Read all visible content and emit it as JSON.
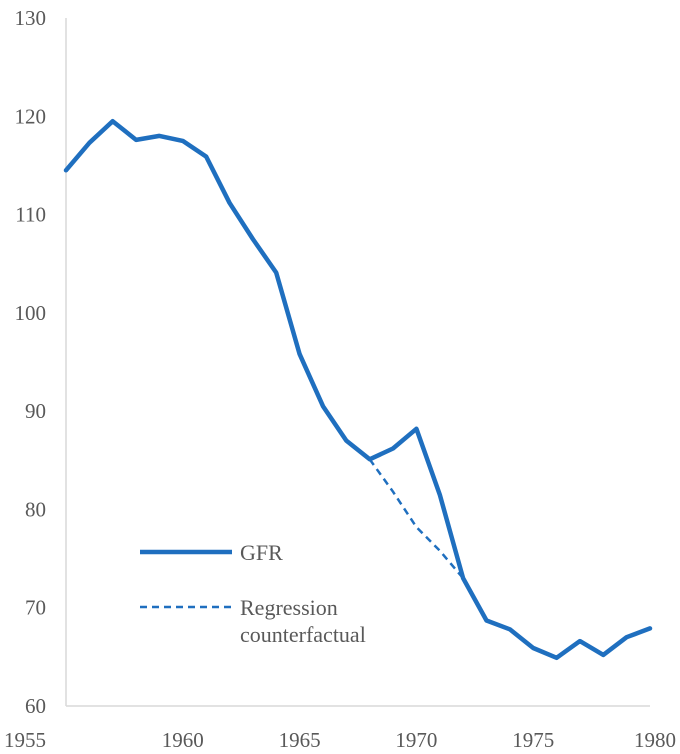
{
  "chart_data": {
    "type": "line",
    "title": "",
    "xlabel": "",
    "ylabel": "",
    "xlim": [
      1955,
      1980
    ],
    "ylim": [
      60,
      130
    ],
    "x_ticks": [
      1955,
      1960,
      1965,
      1970,
      1975,
      1980
    ],
    "y_ticks": [
      60,
      70,
      80,
      90,
      100,
      110,
      120,
      130
    ],
    "grid": false,
    "legend_position": "bottom-left",
    "series": [
      {
        "name": "GFR",
        "style": "solid",
        "color": "#1f6fbf",
        "x": [
          1955,
          1956,
          1957,
          1958,
          1959,
          1960,
          1961,
          1962,
          1963,
          1964,
          1965,
          1966,
          1967,
          1968,
          1969,
          1970,
          1971,
          1972,
          1973,
          1974,
          1975,
          1976,
          1977,
          1978,
          1979,
          1980
        ],
        "values": [
          114.5,
          117.3,
          119.5,
          117.6,
          118.0,
          117.5,
          115.9,
          111.2,
          107.5,
          104.1,
          95.8,
          90.5,
          87.0,
          85.1,
          86.2,
          88.2,
          81.5,
          73.0,
          68.7,
          67.8,
          65.9,
          64.9,
          66.6,
          65.2,
          67.0,
          67.9
        ]
      },
      {
        "name": "Regression counterfactual",
        "legend_lines": [
          "Regression",
          "counterfactual"
        ],
        "style": "dashed",
        "color": "#1f6fbf",
        "x": [
          1968,
          1969,
          1970,
          1971,
          1972
        ],
        "values": [
          85.1,
          81.8,
          78.2,
          75.8,
          73.0
        ]
      }
    ]
  }
}
